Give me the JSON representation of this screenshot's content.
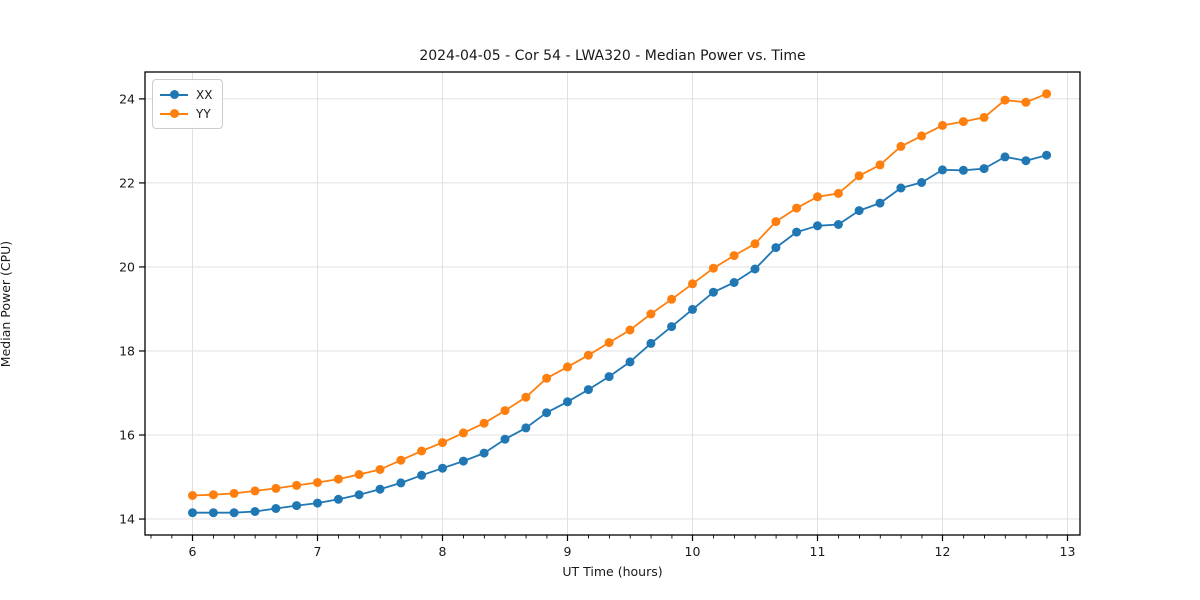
{
  "figure": {
    "background": "#ffffff"
  },
  "chart_data": {
    "type": "line",
    "title": "2024-04-05 - Cor 54 - LWA320 - Median Power vs. Time",
    "xlabel": "UT Time (hours)",
    "ylabel": "Median Power (CPU)",
    "grid": true,
    "legend_position": "upper left",
    "xlim": [
      5.62,
      13.1
    ],
    "ylim": [
      13.62,
      24.64
    ],
    "x_ticks": [
      6,
      7,
      8,
      9,
      10,
      11,
      12,
      13
    ],
    "y_ticks": [
      14,
      16,
      18,
      20,
      22,
      24
    ],
    "x_minor_tick_step": 0.1667,
    "x": [
      6.0,
      6.167,
      6.333,
      6.5,
      6.667,
      6.833,
      7.0,
      7.167,
      7.333,
      7.5,
      7.667,
      7.833,
      8.0,
      8.167,
      8.333,
      8.5,
      8.667,
      8.833,
      9.0,
      9.167,
      9.333,
      9.5,
      9.667,
      9.833,
      10.0,
      10.167,
      10.333,
      10.5,
      10.667,
      10.833,
      11.0,
      11.167,
      11.333,
      11.5,
      11.667,
      11.833,
      12.0,
      12.167,
      12.333,
      12.5,
      12.667,
      12.833
    ],
    "series": [
      {
        "name": "XX",
        "color": "#1f77b4",
        "values": [
          14.15,
          14.15,
          14.15,
          14.18,
          14.25,
          14.32,
          14.38,
          14.47,
          14.58,
          14.71,
          14.86,
          15.04,
          15.21,
          15.38,
          15.57,
          15.9,
          16.17,
          16.53,
          16.79,
          17.08,
          17.39,
          17.74,
          18.18,
          18.58,
          18.99,
          19.4,
          19.63,
          19.95,
          20.46,
          20.83,
          20.98,
          21.01,
          21.34,
          21.52,
          21.88,
          22.01,
          22.31,
          22.3,
          22.34,
          22.62,
          22.53,
          22.66
        ]
      },
      {
        "name": "YY",
        "color": "#ff7f0e",
        "values": [
          14.56,
          14.58,
          14.61,
          14.67,
          14.73,
          14.8,
          14.87,
          14.95,
          15.06,
          15.18,
          15.4,
          15.62,
          15.82,
          16.05,
          16.28,
          16.58,
          16.9,
          17.35,
          17.62,
          17.9,
          18.2,
          18.5,
          18.88,
          19.23,
          19.6,
          19.97,
          20.27,
          20.55,
          21.08,
          21.4,
          21.67,
          21.75,
          22.17,
          22.43,
          22.87,
          23.12,
          23.37,
          23.46,
          23.56,
          23.97,
          23.92,
          24.12
        ]
      }
    ],
    "style": {
      "grid_color": "#e0e0e0",
      "spine_color": "#000000",
      "tick_label_color": "#1a1a1a",
      "marker_radius": 4.5,
      "line_width": 1.8
    }
  }
}
